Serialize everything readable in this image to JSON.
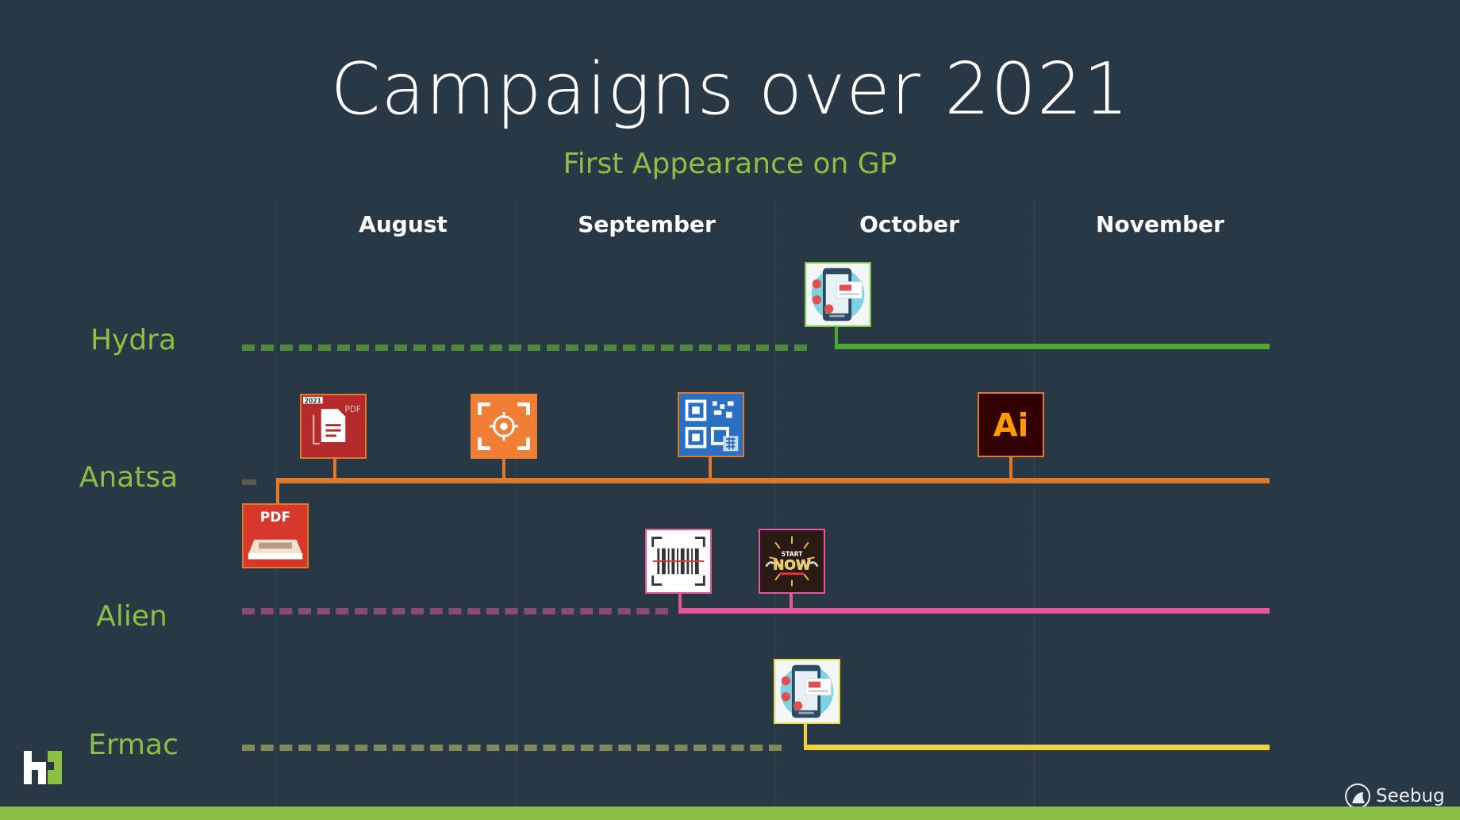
{
  "title": "Campaigns over 2021",
  "subtitle": "First Appearance on GP",
  "months": [
    "August",
    "September",
    "October",
    "November"
  ],
  "rows": [
    {
      "name": "Hydra",
      "color": "#4ea72e",
      "dashed_color": "#4f8a3c",
      "icons": [
        "security-app-icon"
      ]
    },
    {
      "name": "Anatsa",
      "color": "#e07a2b",
      "dashed_color": "#5b5a50",
      "icons": [
        "pdf-scanner-icon",
        "pdf-document-icon",
        "target-scanner-icon",
        "qr-code-icon",
        "adobe-illustrator-icon"
      ]
    },
    {
      "name": "Alien",
      "color": "#e9559a",
      "dashed_color": "#8a4a73",
      "icons": [
        "barcode-scanner-icon",
        "start-now-icon"
      ]
    },
    {
      "name": "Ermac",
      "color": "#f2d23e",
      "dashed_color": "#7f8a5a",
      "icons": [
        "security-app-icon"
      ]
    }
  ],
  "icon_labels": {
    "pdf_top": "PDF",
    "pdf_tag": "2021",
    "pdf_badge": "PDF",
    "ai": "Ai",
    "start": "START",
    "now": "NOW"
  },
  "watermark": "Seebug"
}
